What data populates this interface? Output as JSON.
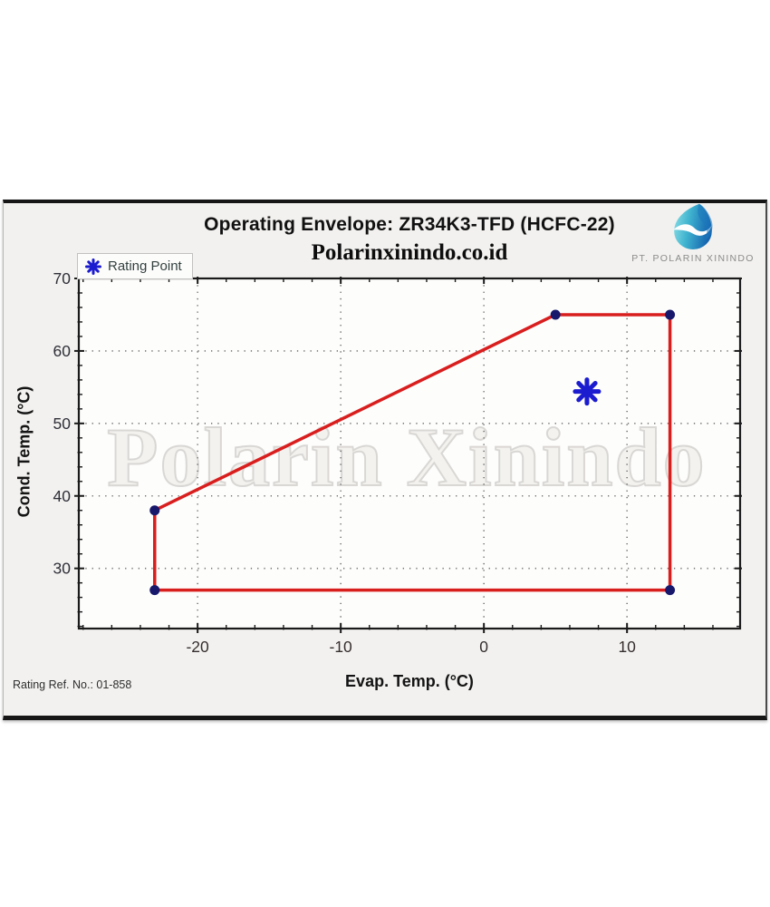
{
  "header": {
    "title": "Operating Envelope: ZR34K3-TFD (HCFC-22)",
    "subtitle": "Polarinxinindo.co.id",
    "brand": {
      "name": "PT. POLARIN XININDO",
      "logo": "water-drop-swirl-icon",
      "logo_color_light": "#7ed7e0",
      "logo_color_dark": "#1565b0"
    }
  },
  "legend": {
    "label": "Rating Point",
    "marker": "blue-asterisk",
    "marker_color": "#1b1bd0"
  },
  "watermark": {
    "text": "Polarin Xinindo"
  },
  "footer": {
    "rating_ref": "Rating Ref. No.: 01-858"
  },
  "chart_data": {
    "type": "line",
    "title": "Operating Envelope: ZR34K3-TFD (HCFC-22)",
    "xlabel": "Evap. Temp. (°C)",
    "ylabel": "Cond. Temp. (°C)",
    "xlim": [
      -28.3,
      17.9
    ],
    "ylim": [
      21.7,
      70
    ],
    "x_major_ticks": [
      -20,
      -10,
      0,
      10
    ],
    "y_major_ticks": [
      30,
      40,
      50,
      60,
      70
    ],
    "minor_tick_step": 2,
    "grid": "dotted-on-major-ticks",
    "grid_color": "#787878",
    "axis_color": "#1a1a1a",
    "legend_position": "top-left",
    "series": [
      {
        "name": "Operating Envelope",
        "type": "closed-polygon",
        "color": "#d91e1e",
        "line_width": 3.5,
        "marker": "circle",
        "marker_color": "#17176b",
        "points": [
          [
            -23,
            27
          ],
          [
            -23,
            38
          ],
          [
            5,
            65
          ],
          [
            13,
            65
          ],
          [
            13,
            27
          ]
        ]
      },
      {
        "name": "Rating Point",
        "type": "point",
        "color": "#1b1bd0",
        "marker": "asterisk",
        "points": [
          [
            7.2,
            54.4
          ]
        ]
      }
    ]
  }
}
